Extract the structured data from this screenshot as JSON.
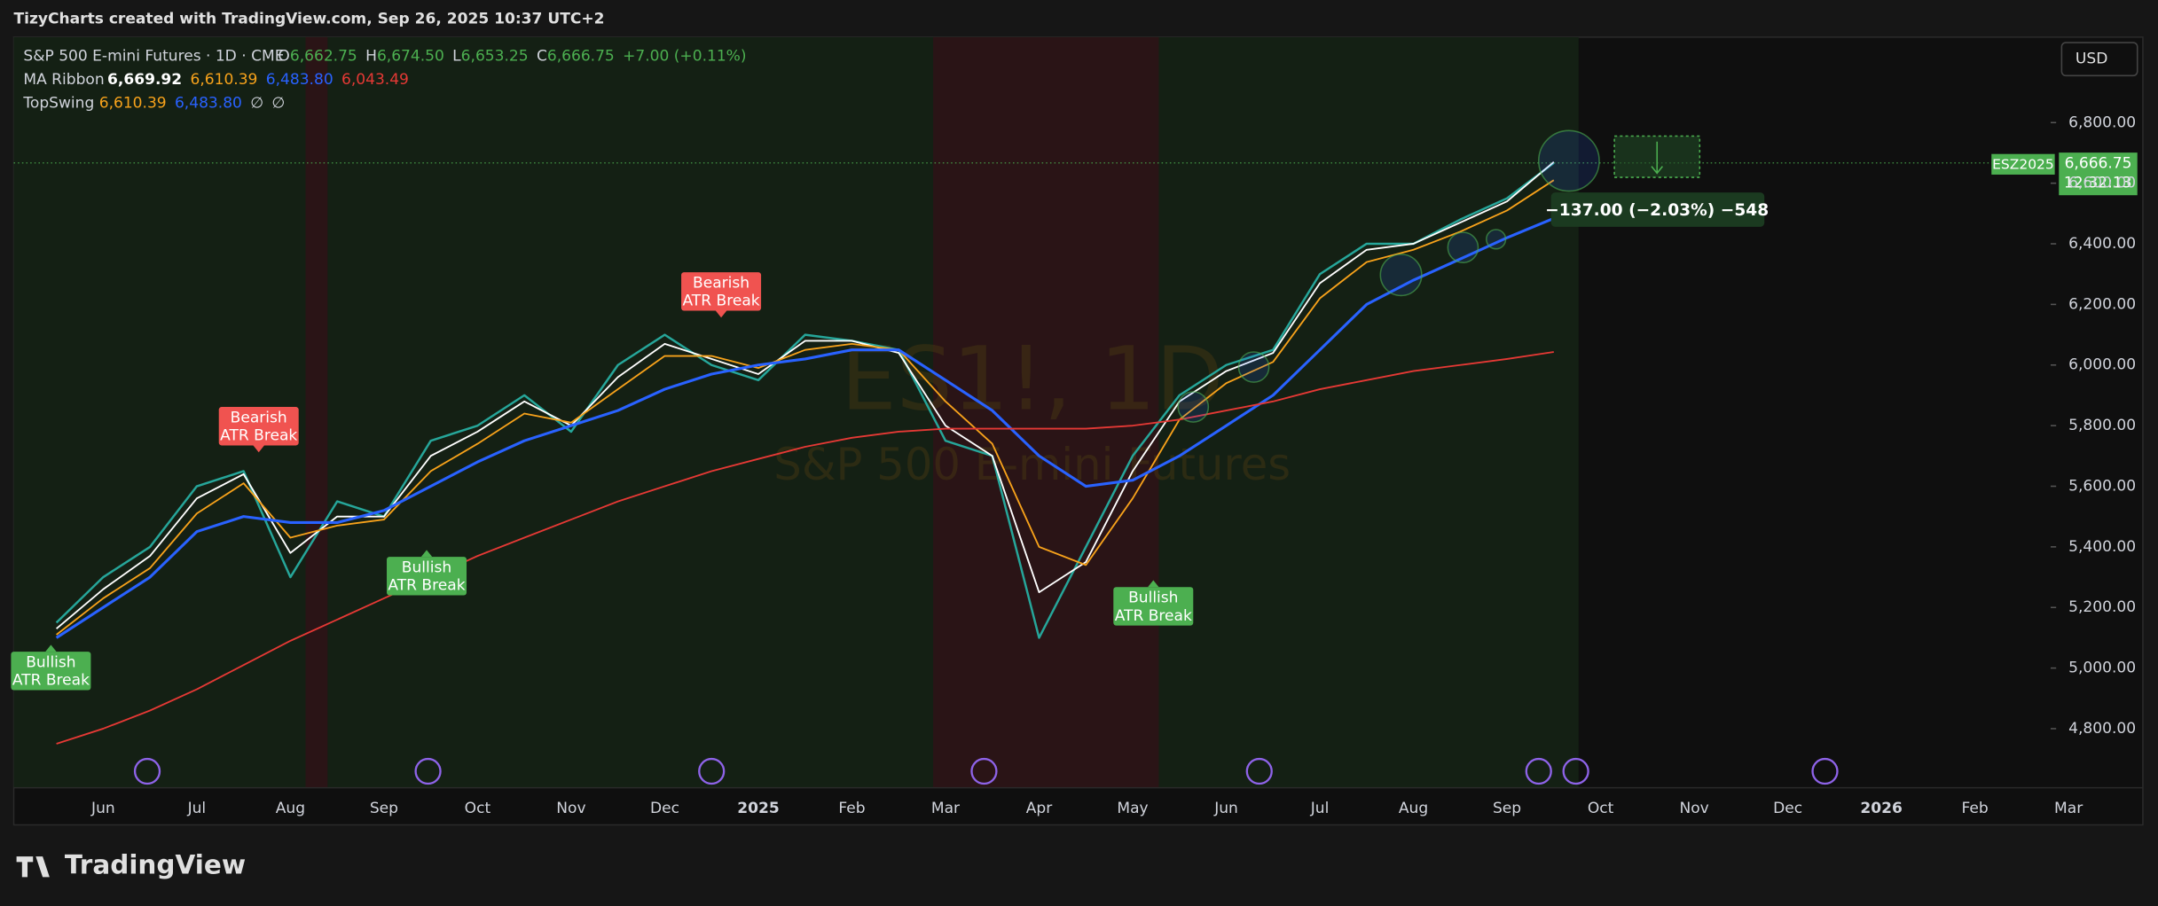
{
  "header": {
    "caption": "TizyCharts created with TradingView.com, Sep 26, 2025 10:37 UTC+2"
  },
  "legend": {
    "symbol": "S&P 500 E-mini Futures · 1D · CME",
    "ohlc": [
      {
        "label": "O",
        "value": "6,662.75"
      },
      {
        "label": "H",
        "value": "6,674.50"
      },
      {
        "label": "L",
        "value": "6,653.25"
      },
      {
        "label": "C",
        "value": "6,666.75"
      }
    ],
    "change": "+7.00 (+0.11%)",
    "ma_ribbon": {
      "name": "MA Ribbon",
      "values": [
        "6,669.92",
        "6,610.39",
        "6,483.80",
        "6,043.49"
      ]
    },
    "topswing": {
      "name": "TopSwing",
      "values": [
        "6,610.39",
        "6,483.80",
        "∅",
        "∅"
      ]
    }
  },
  "currency": "USD",
  "watermark": {
    "symbol": "ES1!, 1D",
    "name": "S&P 500 E-mini Futures"
  },
  "price_tag": {
    "ticker": "ESZ2025",
    "price": "6,666.75",
    "countdown": "12:32:13"
  },
  "measure": "−137.00 (−2.03%) −548",
  "annotations": [
    {
      "kind": "Bullish",
      "text": "ATR Break"
    },
    {
      "kind": "Bearish",
      "text": "ATR Break"
    },
    {
      "kind": "Bullish",
      "text": "ATR Break"
    },
    {
      "kind": "Bearish",
      "text": "ATR Break"
    },
    {
      "kind": "Bullish",
      "text": "ATR Break"
    }
  ],
  "brand": "TradingView",
  "chart_data": {
    "type": "line",
    "categories": [
      null,
      "Jun",
      null,
      "Jul",
      null,
      "Aug",
      null,
      "Sep",
      null,
      "Oct",
      null,
      "Nov",
      null,
      "Dec",
      null,
      "2025",
      null,
      "Feb",
      null,
      "Mar",
      null,
      "Apr",
      null,
      "May",
      null,
      "Jun",
      null,
      "Jul",
      null,
      "Aug",
      null,
      "Sep",
      null,
      "Oct",
      null,
      "Nov",
      null,
      "Dec",
      null,
      "2026",
      null,
      "Feb",
      null,
      "Mar"
    ],
    "series": [
      {
        "color": "#26a69a",
        "values": [
          5150,
          5300,
          5400,
          5600,
          5650,
          5300,
          5550,
          5500,
          5750,
          5800,
          5900,
          5780,
          6000,
          6100,
          6000,
          5950,
          6100,
          6080,
          6050,
          5750,
          5700,
          5100,
          5400,
          5700,
          5900,
          6000,
          6050,
          6300,
          6400,
          6400,
          6480,
          6550,
          6667,
          null,
          null,
          null,
          null,
          null,
          null,
          null,
          null,
          null,
          null,
          null
        ]
      },
      {
        "color": "#ffffff",
        "values": [
          5130,
          5260,
          5370,
          5560,
          5640,
          5380,
          5500,
          5500,
          5700,
          5780,
          5880,
          5800,
          5960,
          6070,
          6020,
          5970,
          6080,
          6080,
          6040,
          5800,
          5700,
          5250,
          5350,
          5650,
          5880,
          5980,
          6040,
          6270,
          6380,
          6400,
          6470,
          6540,
          6670,
          null,
          null,
          null,
          null,
          null,
          null,
          null,
          null,
          null,
          null,
          null
        ]
      },
      {
        "color": "#f7a21b",
        "values": [
          5110,
          5230,
          5330,
          5510,
          5610,
          5430,
          5470,
          5490,
          5650,
          5740,
          5840,
          5810,
          5920,
          6030,
          6030,
          5990,
          6050,
          6070,
          6050,
          5880,
          5740,
          5400,
          5340,
          5560,
          5820,
          5940,
          6010,
          6220,
          6340,
          6380,
          6440,
          6510,
          6610,
          null,
          null,
          null,
          null,
          null,
          null,
          null,
          null,
          null,
          null,
          null
        ]
      },
      {
        "color": "#2962ff",
        "values": [
          5100,
          5200,
          5300,
          5450,
          5500,
          5480,
          5480,
          5520,
          5600,
          5680,
          5750,
          5800,
          5850,
          5920,
          5970,
          6000,
          6020,
          6050,
          6050,
          5950,
          5850,
          5700,
          5600,
          5620,
          5700,
          5800,
          5900,
          6050,
          6200,
          6280,
          6350,
          6420,
          6484,
          null,
          null,
          null,
          null,
          null,
          null,
          null,
          null,
          null,
          null,
          null
        ]
      },
      {
        "color": "#e53935",
        "values": [
          4750,
          4800,
          4860,
          4930,
          5010,
          5090,
          5160,
          5230,
          5300,
          5370,
          5430,
          5490,
          5550,
          5600,
          5650,
          5690,
          5730,
          5760,
          5780,
          5790,
          5790,
          5790,
          5790,
          5800,
          5820,
          5850,
          5880,
          5920,
          5950,
          5980,
          6000,
          6020,
          6043,
          null,
          null,
          null,
          null,
          null,
          null,
          null,
          null,
          null,
          null,
          null
        ]
      }
    ],
    "ylim": [
      4605,
      7082
    ],
    "yticks": [
      {
        "value": 4800,
        "label": "4,800.00"
      },
      {
        "value": 5000,
        "label": "5,000.00"
      },
      {
        "value": 5200,
        "label": "5,200.00"
      },
      {
        "value": 5400,
        "label": "5,400.00"
      },
      {
        "value": 5600,
        "label": "5,600.00"
      },
      {
        "value": 5800,
        "label": "5,800.00"
      },
      {
        "value": 6000,
        "label": "6,000.00"
      },
      {
        "value": 6200,
        "label": "6,200.00"
      },
      {
        "value": 6400,
        "label": "6,400.00"
      },
      {
        "value": 6600,
        "label": "6,600.00"
      },
      {
        "value": 6800,
        "label": "6,800.00"
      }
    ]
  }
}
